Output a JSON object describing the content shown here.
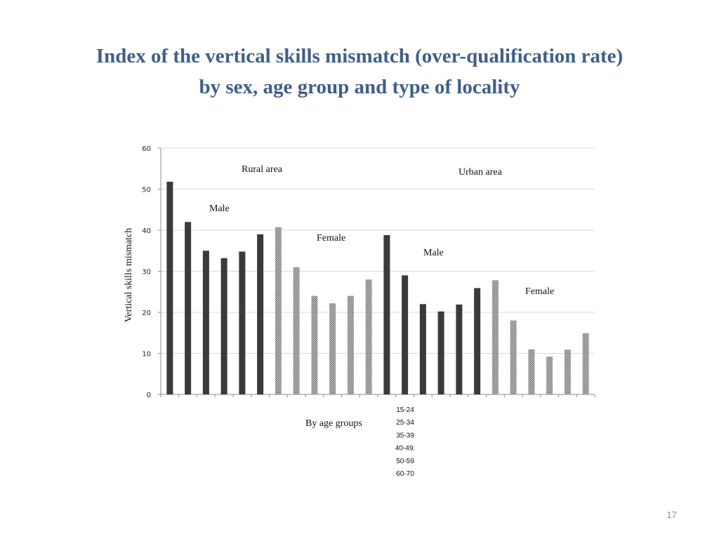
{
  "slide": {
    "title_line1": "Index of the vertical skills mismatch (over-qualification rate)",
    "title_line2": "by sex, age group and type of locality",
    "page_number": "17"
  },
  "colors": {
    "title": "#3f5f8a",
    "male_bar": "#3a3a3a",
    "female_bar_hatched": "#9a9a9a",
    "gridline": "#d9d9d9"
  },
  "chart_data": {
    "type": "bar",
    "ylabel": "Vertical skills mismatch",
    "xlabel": "By age groups",
    "ylim": [
      0,
      60
    ],
    "yticks": [
      0,
      10,
      20,
      30,
      40,
      50,
      60
    ],
    "grid": true,
    "age_groups": [
      "15-24",
      "25-34",
      "35-39",
      "40-49.",
      "50-59",
      "60-70"
    ],
    "groups": [
      {
        "area": "Rural area",
        "sex": "Male",
        "values": [
          51.8,
          42,
          35,
          33.2,
          34.8,
          39
        ]
      },
      {
        "area": "Rural area",
        "sex": "Female",
        "values": [
          40.7,
          31,
          24,
          22.2,
          24,
          28
        ]
      },
      {
        "area": "Urban area",
        "sex": "Male",
        "values": [
          38.8,
          29,
          22,
          20.2,
          21.9,
          25.9
        ]
      },
      {
        "area": "Urban area",
        "sex": "Female",
        "values": [
          27.8,
          18,
          11,
          9.2,
          10.9,
          14.9
        ]
      }
    ],
    "annotations": {
      "rural_area": "Rural area",
      "urban_area": "Urban area",
      "rural_male": "Male",
      "rural_female": "Female",
      "urban_male": "Male",
      "urban_female": "Female"
    }
  }
}
